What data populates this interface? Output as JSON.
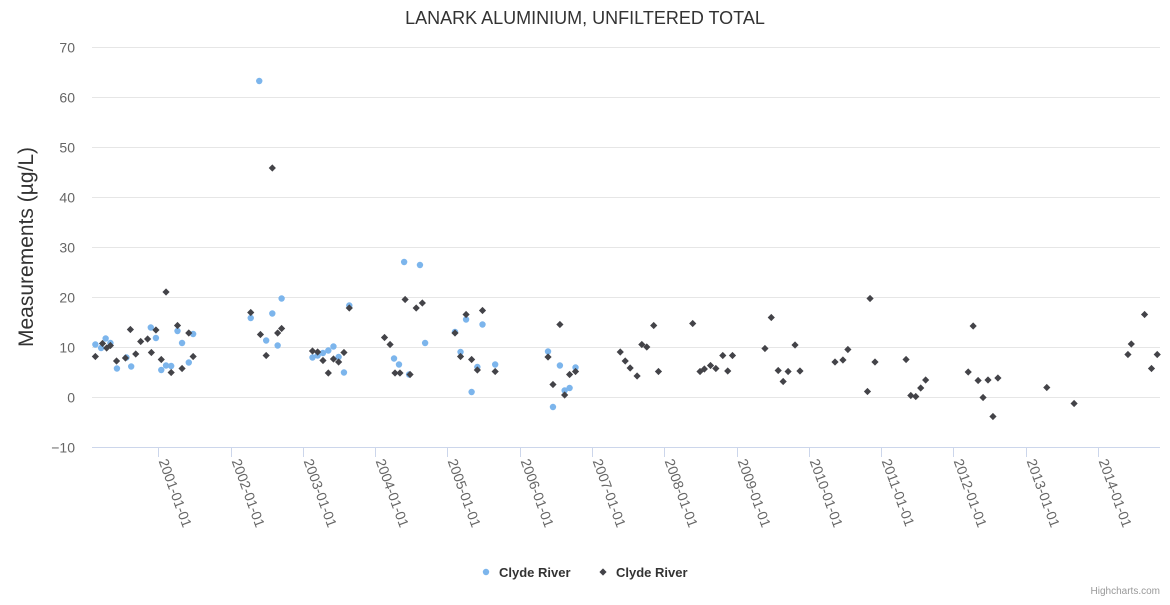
{
  "chart_data": {
    "type": "scatter",
    "title": "LANARK ALUMINIUM, UNFILTERED TOTAL",
    "ylabel": "Measurements (µg/L)",
    "xlabel": "",
    "x_type": "datetime",
    "xlim": [
      "2000-02-01",
      "2014-11-10"
    ],
    "ylim": [
      -10,
      70
    ],
    "y_ticks": [
      70,
      60,
      50,
      40,
      30,
      20,
      10,
      0,
      -10
    ],
    "x_ticks": [
      "2001-01-01",
      "2002-01-01",
      "2003-01-01",
      "2004-01-01",
      "2005-01-01",
      "2006-01-01",
      "2007-01-01",
      "2008-01-01",
      "2009-01-01",
      "2010-01-01",
      "2011-01-01",
      "2012-01-01",
      "2013-01-01",
      "2014-01-01"
    ],
    "grid": true,
    "legend_position": "bottom-center",
    "credit": "Highcharts.com",
    "series": [
      {
        "name": "Clyde River",
        "marker": "circle",
        "color": "#7cb5ec",
        "points": [
          {
            "x": "2000-02-18",
            "y": 10.5
          },
          {
            "x": "2000-03-18",
            "y": 9.8
          },
          {
            "x": "2000-04-10",
            "y": 11.7
          },
          {
            "x": "2000-05-04",
            "y": 10.8
          },
          {
            "x": "2000-06-06",
            "y": 5.7
          },
          {
            "x": "2000-07-24",
            "y": 7.9
          },
          {
            "x": "2000-08-17",
            "y": 6.1
          },
          {
            "x": "2000-11-24",
            "y": 13.9
          },
          {
            "x": "2000-12-20",
            "y": 11.8
          },
          {
            "x": "2001-01-16",
            "y": 5.4
          },
          {
            "x": "2001-02-09",
            "y": 6.3
          },
          {
            "x": "2001-03-07",
            "y": 6.2
          },
          {
            "x": "2001-04-08",
            "y": 13.2
          },
          {
            "x": "2001-05-01",
            "y": 10.8
          },
          {
            "x": "2001-06-04",
            "y": 6.9
          },
          {
            "x": "2001-06-26",
            "y": 12.6
          },
          {
            "x": "2002-04-13",
            "y": 15.8
          },
          {
            "x": "2002-05-26",
            "y": 63.2
          },
          {
            "x": "2002-06-30",
            "y": 11.3
          },
          {
            "x": "2002-07-31",
            "y": 16.7
          },
          {
            "x": "2002-08-27",
            "y": 10.3
          },
          {
            "x": "2002-09-16",
            "y": 19.7
          },
          {
            "x": "2003-02-19",
            "y": 7.9
          },
          {
            "x": "2003-03-17",
            "y": 8.3
          },
          {
            "x": "2003-04-13",
            "y": 8.8
          },
          {
            "x": "2003-05-10",
            "y": 9.3
          },
          {
            "x": "2003-06-05",
            "y": 10.1
          },
          {
            "x": "2003-07-01",
            "y": 8.0
          },
          {
            "x": "2003-07-28",
            "y": 4.9
          },
          {
            "x": "2003-08-24",
            "y": 18.3
          },
          {
            "x": "2004-04-06",
            "y": 7.7
          },
          {
            "x": "2004-05-01",
            "y": 6.5
          },
          {
            "x": "2004-05-27",
            "y": 27.0
          },
          {
            "x": "2004-06-21",
            "y": 4.5
          },
          {
            "x": "2004-08-15",
            "y": 26.4
          },
          {
            "x": "2004-09-10",
            "y": 10.8
          },
          {
            "x": "2005-02-08",
            "y": 13.0
          },
          {
            "x": "2005-03-08",
            "y": 9.0
          },
          {
            "x": "2005-04-05",
            "y": 15.5
          },
          {
            "x": "2005-05-03",
            "y": 1.0
          },
          {
            "x": "2005-06-01",
            "y": 6.0
          },
          {
            "x": "2005-06-27",
            "y": 14.5
          },
          {
            "x": "2005-08-30",
            "y": 6.5
          },
          {
            "x": "2006-05-24",
            "y": 9.1
          },
          {
            "x": "2006-06-18",
            "y": -2.0
          },
          {
            "x": "2006-07-23",
            "y": 6.3
          },
          {
            "x": "2006-08-16",
            "y": 1.3
          },
          {
            "x": "2006-09-10",
            "y": 1.8
          },
          {
            "x": "2006-10-10",
            "y": 5.9
          }
        ]
      },
      {
        "name": "Clyde River",
        "marker": "diamond",
        "color": "#434348",
        "points": [
          {
            "x": "2000-02-18",
            "y": 8.1
          },
          {
            "x": "2000-03-25",
            "y": 10.7
          },
          {
            "x": "2000-04-15",
            "y": 9.8
          },
          {
            "x": "2000-05-04",
            "y": 10.3
          },
          {
            "x": "2000-06-04",
            "y": 7.2
          },
          {
            "x": "2000-07-19",
            "y": 7.8
          },
          {
            "x": "2000-08-13",
            "y": 13.5
          },
          {
            "x": "2000-09-09",
            "y": 8.6
          },
          {
            "x": "2000-10-04",
            "y": 11.1
          },
          {
            "x": "2000-11-08",
            "y": 11.6
          },
          {
            "x": "2000-11-27",
            "y": 8.9
          },
          {
            "x": "2000-12-20",
            "y": 13.4
          },
          {
            "x": "2001-01-16",
            "y": 7.5
          },
          {
            "x": "2001-02-09",
            "y": 21.0
          },
          {
            "x": "2001-03-07",
            "y": 4.9
          },
          {
            "x": "2001-04-08",
            "y": 14.3
          },
          {
            "x": "2001-05-01",
            "y": 5.7
          },
          {
            "x": "2001-06-04",
            "y": 12.8
          },
          {
            "x": "2001-06-26",
            "y": 8.1
          },
          {
            "x": "2002-04-13",
            "y": 16.9
          },
          {
            "x": "2002-06-01",
            "y": 12.5
          },
          {
            "x": "2002-06-30",
            "y": 8.3
          },
          {
            "x": "2002-07-31",
            "y": 45.8
          },
          {
            "x": "2002-08-27",
            "y": 12.8
          },
          {
            "x": "2002-09-16",
            "y": 13.7
          },
          {
            "x": "2003-02-19",
            "y": 9.2
          },
          {
            "x": "2003-03-17",
            "y": 9.0
          },
          {
            "x": "2003-04-13",
            "y": 7.3
          },
          {
            "x": "2003-05-10",
            "y": 4.8
          },
          {
            "x": "2003-06-05",
            "y": 7.6
          },
          {
            "x": "2003-07-01",
            "y": 7.0
          },
          {
            "x": "2003-07-28",
            "y": 8.9
          },
          {
            "x": "2003-08-24",
            "y": 17.8
          },
          {
            "x": "2004-02-18",
            "y": 11.9
          },
          {
            "x": "2004-03-17",
            "y": 10.5
          },
          {
            "x": "2004-04-11",
            "y": 4.8
          },
          {
            "x": "2004-05-06",
            "y": 4.8
          },
          {
            "x": "2004-06-01",
            "y": 19.5
          },
          {
            "x": "2004-06-26",
            "y": 4.5
          },
          {
            "x": "2004-07-27",
            "y": 17.8
          },
          {
            "x": "2004-08-27",
            "y": 18.8
          },
          {
            "x": "2005-02-08",
            "y": 12.8
          },
          {
            "x": "2005-03-08",
            "y": 8.1
          },
          {
            "x": "2005-04-05",
            "y": 16.5
          },
          {
            "x": "2005-05-03",
            "y": 7.5
          },
          {
            "x": "2005-06-01",
            "y": 5.4
          },
          {
            "x": "2005-06-27",
            "y": 17.3
          },
          {
            "x": "2005-08-30",
            "y": 5.1
          },
          {
            "x": "2006-05-24",
            "y": 8.0
          },
          {
            "x": "2006-06-18",
            "y": 2.5
          },
          {
            "x": "2006-07-23",
            "y": 14.5
          },
          {
            "x": "2006-08-16",
            "y": 0.4
          },
          {
            "x": "2006-09-10",
            "y": 4.5
          },
          {
            "x": "2006-10-10",
            "y": 5.1
          },
          {
            "x": "2007-05-24",
            "y": 9.0
          },
          {
            "x": "2007-06-18",
            "y": 7.2
          },
          {
            "x": "2007-07-13",
            "y": 5.8
          },
          {
            "x": "2007-08-17",
            "y": 4.2
          },
          {
            "x": "2007-09-10",
            "y": 10.5
          },
          {
            "x": "2007-10-05",
            "y": 10.0
          },
          {
            "x": "2007-11-09",
            "y": 14.3
          },
          {
            "x": "2007-12-03",
            "y": 5.1
          },
          {
            "x": "2008-05-24",
            "y": 14.7
          },
          {
            "x": "2008-06-30",
            "y": 5.1
          },
          {
            "x": "2008-07-22",
            "y": 5.6
          },
          {
            "x": "2008-08-22",
            "y": 6.3
          },
          {
            "x": "2008-09-18",
            "y": 5.7
          },
          {
            "x": "2008-10-23",
            "y": 8.3
          },
          {
            "x": "2008-11-17",
            "y": 5.2
          },
          {
            "x": "2008-12-11",
            "y": 8.3
          },
          {
            "x": "2009-05-24",
            "y": 9.7
          },
          {
            "x": "2009-06-25",
            "y": 15.9
          },
          {
            "x": "2009-07-30",
            "y": 5.3
          },
          {
            "x": "2009-08-24",
            "y": 3.1
          },
          {
            "x": "2009-09-18",
            "y": 5.1
          },
          {
            "x": "2009-10-23",
            "y": 10.4
          },
          {
            "x": "2009-11-17",
            "y": 5.2
          },
          {
            "x": "2010-05-13",
            "y": 7.0
          },
          {
            "x": "2010-06-22",
            "y": 7.4
          },
          {
            "x": "2010-07-17",
            "y": 9.5
          },
          {
            "x": "2010-10-24",
            "y": 1.1
          },
          {
            "x": "2010-11-06",
            "y": 19.7
          },
          {
            "x": "2010-12-01",
            "y": 7.0
          },
          {
            "x": "2011-05-07",
            "y": 7.5
          },
          {
            "x": "2011-05-31",
            "y": 0.3
          },
          {
            "x": "2011-06-25",
            "y": 0.1
          },
          {
            "x": "2011-07-20",
            "y": 1.8
          },
          {
            "x": "2011-08-14",
            "y": 3.4
          },
          {
            "x": "2012-03-16",
            "y": 5.0
          },
          {
            "x": "2012-04-10",
            "y": 14.2
          },
          {
            "x": "2012-05-05",
            "y": 3.3
          },
          {
            "x": "2012-05-30",
            "y": -0.1
          },
          {
            "x": "2012-06-24",
            "y": 3.4
          },
          {
            "x": "2012-07-19",
            "y": -3.9
          },
          {
            "x": "2012-08-13",
            "y": 3.8
          },
          {
            "x": "2013-04-17",
            "y": 1.9
          },
          {
            "x": "2013-09-02",
            "y": -1.3
          },
          {
            "x": "2014-06-01",
            "y": 8.5
          },
          {
            "x": "2014-06-18",
            "y": 10.6
          },
          {
            "x": "2014-08-24",
            "y": 16.5
          },
          {
            "x": "2014-09-28",
            "y": 5.7
          },
          {
            "x": "2014-10-27",
            "y": 8.5
          }
        ]
      }
    ]
  }
}
